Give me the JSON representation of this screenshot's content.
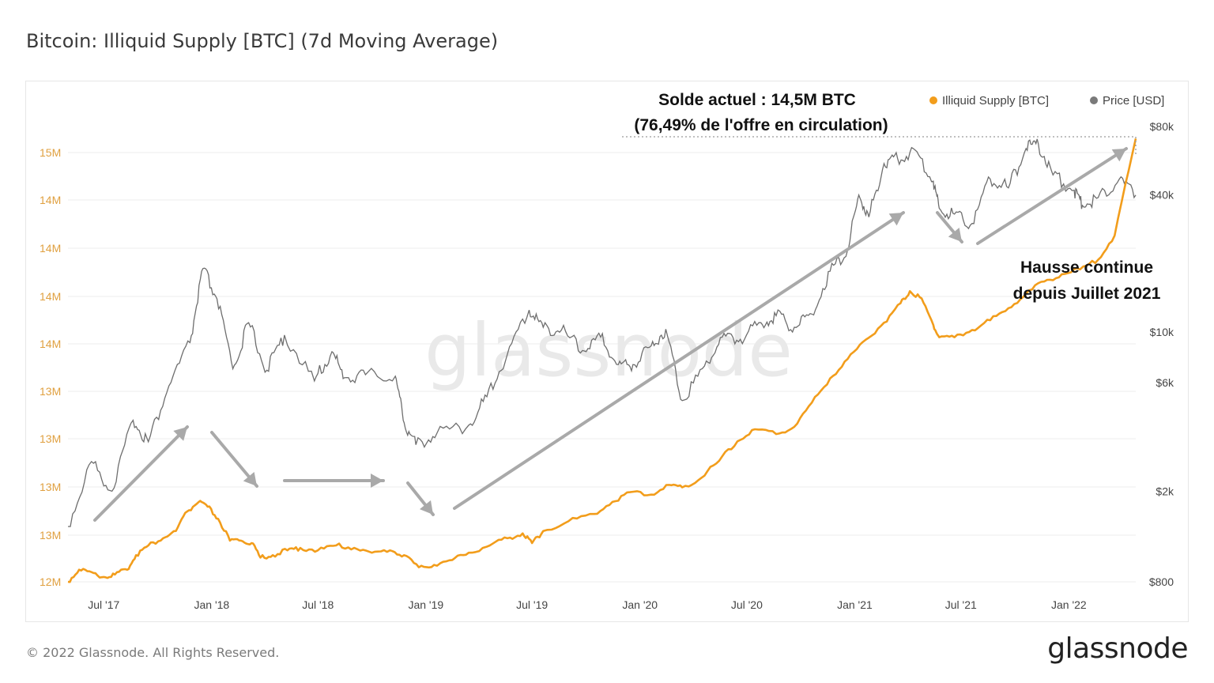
{
  "title": "Bitcoin: Illiquid Supply [BTC] (7d Moving Average)",
  "footer": "© 2022 Glassnode. All Rights Reserved.",
  "brand": "glassnode",
  "watermark": "glassnode",
  "colors": {
    "supply": "#f29d1b",
    "price": "#6e6e6e",
    "arrow": "#a9a9a9",
    "grid": "#eeeeee"
  },
  "legend": [
    {
      "label": "Illiquid Supply [BTC]",
      "color": "#f29d1b"
    },
    {
      "label": "Price [USD]",
      "color": "#7a7a7a"
    }
  ],
  "annotations": {
    "current_line1": "Solde actuel : 14,5M BTC",
    "current_line2": "(76,49% de l'offre en circulation)",
    "rise_line1": "Hausse continue",
    "rise_line2": "depuis Juillet 2021"
  },
  "chart_data": {
    "type": "line",
    "title": "Bitcoin: Illiquid Supply [BTC] (7d Moving Average)",
    "x_ticks": [
      "Jul '17",
      "Jan '18",
      "Jul '18",
      "Jan '19",
      "Jul '19",
      "Jan '20",
      "Jul '20",
      "Jan '21",
      "Jul '21",
      "Jan '22"
    ],
    "x_range": [
      "2017-05-01",
      "2022-04-25"
    ],
    "y_left_ticks": [
      "12M",
      "13M",
      "13M",
      "13M",
      "13M",
      "14M",
      "14M",
      "14M",
      "14M",
      "15M"
    ],
    "y_left_range": [
      12.67,
      14.55
    ],
    "y_right_ticks": [
      "$800",
      "$2k",
      "$6k",
      "$10k",
      "$40k",
      "$80k"
    ],
    "y_right_scale": "log",
    "y_right_range": [
      800,
      80000
    ],
    "legend_position": "top-right",
    "grid": true,
    "series": [
      {
        "name": "Illiquid Supply [BTC]",
        "axis": "left",
        "points": [
          [
            "2017-05-01",
            12.67
          ],
          [
            "2017-05-20",
            12.72
          ],
          [
            "2017-06-10",
            12.71
          ],
          [
            "2017-07-01",
            12.69
          ],
          [
            "2017-07-20",
            12.7
          ],
          [
            "2017-08-10",
            12.72
          ],
          [
            "2017-08-25",
            12.78
          ],
          [
            "2017-09-15",
            12.82
          ],
          [
            "2017-10-10",
            12.85
          ],
          [
            "2017-11-01",
            12.88
          ],
          [
            "2017-11-20",
            12.96
          ],
          [
            "2017-12-10",
            13.0
          ],
          [
            "2017-12-25",
            12.98
          ],
          [
            "2018-01-12",
            12.93
          ],
          [
            "2018-02-01",
            12.84
          ],
          [
            "2018-02-20",
            12.84
          ],
          [
            "2018-03-10",
            12.83
          ],
          [
            "2018-03-25",
            12.77
          ],
          [
            "2018-04-15",
            12.78
          ],
          [
            "2018-05-10",
            12.8
          ],
          [
            "2018-06-01",
            12.81
          ],
          [
            "2018-07-01",
            12.8
          ],
          [
            "2018-08-01",
            12.82
          ],
          [
            "2018-09-01",
            12.81
          ],
          [
            "2018-10-01",
            12.79
          ],
          [
            "2018-11-01",
            12.8
          ],
          [
            "2018-11-25",
            12.78
          ],
          [
            "2018-12-20",
            12.73
          ],
          [
            "2019-01-15",
            12.74
          ],
          [
            "2019-02-15",
            12.76
          ],
          [
            "2019-03-15",
            12.79
          ],
          [
            "2019-04-20",
            12.82
          ],
          [
            "2019-05-20",
            12.85
          ],
          [
            "2019-06-15",
            12.87
          ],
          [
            "2019-07-01",
            12.83
          ],
          [
            "2019-07-20",
            12.88
          ],
          [
            "2019-09-01",
            12.92
          ],
          [
            "2019-10-15",
            12.95
          ],
          [
            "2019-11-15",
            13.0
          ],
          [
            "2019-12-15",
            13.04
          ],
          [
            "2020-01-20",
            13.03
          ],
          [
            "2020-02-20",
            13.07
          ],
          [
            "2020-03-13",
            13.06
          ],
          [
            "2020-04-15",
            13.1
          ],
          [
            "2020-05-15",
            13.17
          ],
          [
            "2020-06-15",
            13.25
          ],
          [
            "2020-07-15",
            13.3
          ],
          [
            "2020-08-20",
            13.28
          ],
          [
            "2020-09-20",
            13.31
          ],
          [
            "2020-10-20",
            13.41
          ],
          [
            "2020-11-20",
            13.51
          ],
          [
            "2020-12-20",
            13.59
          ],
          [
            "2021-01-20",
            13.67
          ],
          [
            "2021-02-20",
            13.74
          ],
          [
            "2021-03-20",
            13.82
          ],
          [
            "2021-04-05",
            13.87
          ],
          [
            "2021-04-25",
            13.84
          ],
          [
            "2021-05-15",
            13.73
          ],
          [
            "2021-05-25",
            13.68
          ],
          [
            "2021-06-20",
            13.68
          ],
          [
            "2021-07-20",
            13.71
          ],
          [
            "2021-08-20",
            13.75
          ],
          [
            "2021-09-20",
            13.8
          ],
          [
            "2021-10-20",
            13.86
          ],
          [
            "2021-11-20",
            13.91
          ],
          [
            "2021-12-20",
            13.94
          ],
          [
            "2022-01-20",
            13.96
          ],
          [
            "2022-02-20",
            14.0
          ],
          [
            "2022-03-20",
            14.1
          ],
          [
            "2022-04-25",
            14.5
          ]
        ]
      },
      {
        "name": "Price [USD]",
        "axis": "right",
        "points": [
          [
            "2017-05-01",
            1400
          ],
          [
            "2017-06-10",
            2700
          ],
          [
            "2017-07-15",
            2000
          ],
          [
            "2017-08-20",
            4100
          ],
          [
            "2017-09-15",
            3300
          ],
          [
            "2017-10-20",
            5800
          ],
          [
            "2017-11-25",
            9000
          ],
          [
            "2017-12-17",
            19000
          ],
          [
            "2018-01-10",
            14000
          ],
          [
            "2018-02-06",
            6900
          ],
          [
            "2018-03-05",
            11000
          ],
          [
            "2018-04-05",
            6800
          ],
          [
            "2018-05-05",
            9700
          ],
          [
            "2018-06-25",
            6100
          ],
          [
            "2018-07-25",
            8200
          ],
          [
            "2018-08-15",
            6300
          ],
          [
            "2018-09-20",
            6500
          ],
          [
            "2018-11-10",
            6400
          ],
          [
            "2018-11-25",
            4000
          ],
          [
            "2018-12-15",
            3200
          ],
          [
            "2019-01-20",
            3600
          ],
          [
            "2019-03-15",
            3900
          ],
          [
            "2019-04-15",
            5200
          ],
          [
            "2019-05-20",
            8000
          ],
          [
            "2019-06-26",
            12500
          ],
          [
            "2019-07-20",
            10500
          ],
          [
            "2019-08-20",
            10200
          ],
          [
            "2019-09-25",
            8300
          ],
          [
            "2019-10-26",
            9500
          ],
          [
            "2019-11-25",
            7200
          ],
          [
            "2019-12-20",
            7200
          ],
          [
            "2020-01-20",
            8700
          ],
          [
            "2020-02-14",
            10300
          ],
          [
            "2020-03-13",
            5000
          ],
          [
            "2020-04-20",
            7100
          ],
          [
            "2020-05-20",
            9500
          ],
          [
            "2020-06-20",
            9300
          ],
          [
            "2020-07-25",
            11000
          ],
          [
            "2020-08-20",
            11800
          ],
          [
            "2020-09-20",
            10500
          ],
          [
            "2020-10-20",
            12000
          ],
          [
            "2020-11-20",
            18500
          ],
          [
            "2020-12-20",
            23000
          ],
          [
            "2021-01-08",
            40000
          ],
          [
            "2021-01-25",
            32000
          ],
          [
            "2021-02-20",
            55000
          ],
          [
            "2021-03-15",
            58000
          ],
          [
            "2021-04-14",
            63000
          ],
          [
            "2021-05-15",
            46000
          ],
          [
            "2021-05-25",
            35000
          ],
          [
            "2021-06-20",
            33000
          ],
          [
            "2021-07-20",
            30000
          ],
          [
            "2021-08-20",
            47000
          ],
          [
            "2021-09-20",
            43000
          ],
          [
            "2021-10-20",
            64000
          ],
          [
            "2021-11-10",
            67000
          ],
          [
            "2021-12-05",
            49000
          ],
          [
            "2022-01-10",
            42000
          ],
          [
            "2022-01-24",
            36000
          ],
          [
            "2022-02-20",
            39000
          ],
          [
            "2022-03-28",
            47000
          ],
          [
            "2022-04-25",
            40000
          ]
        ]
      }
    ]
  }
}
